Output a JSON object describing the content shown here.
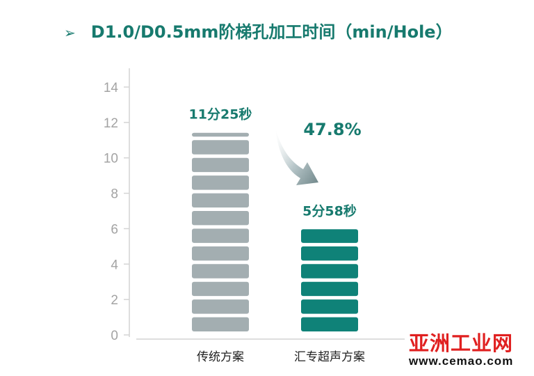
{
  "title": {
    "bullet": "➢",
    "text": "D1.0/D0.5mm阶梯孔加工时间（min/Hole）"
  },
  "chart_data": {
    "type": "bar",
    "categories": [
      "传统方案",
      "汇专超声方案"
    ],
    "values": [
      11.4167,
      5.9667
    ],
    "data_labels": [
      "11分25秒",
      "5分58秒"
    ],
    "reduction_label": "47.8%",
    "yticks": [
      "0",
      "2",
      "4",
      "6",
      "8",
      "10",
      "12",
      "14"
    ],
    "ylim": [
      0,
      14
    ],
    "colors": [
      "#a3aeb1",
      "#0f8278"
    ],
    "grid": false,
    "legend": "none"
  },
  "watermark": {
    "brand": "亚洲工业网",
    "url": "www.cemao.com"
  }
}
